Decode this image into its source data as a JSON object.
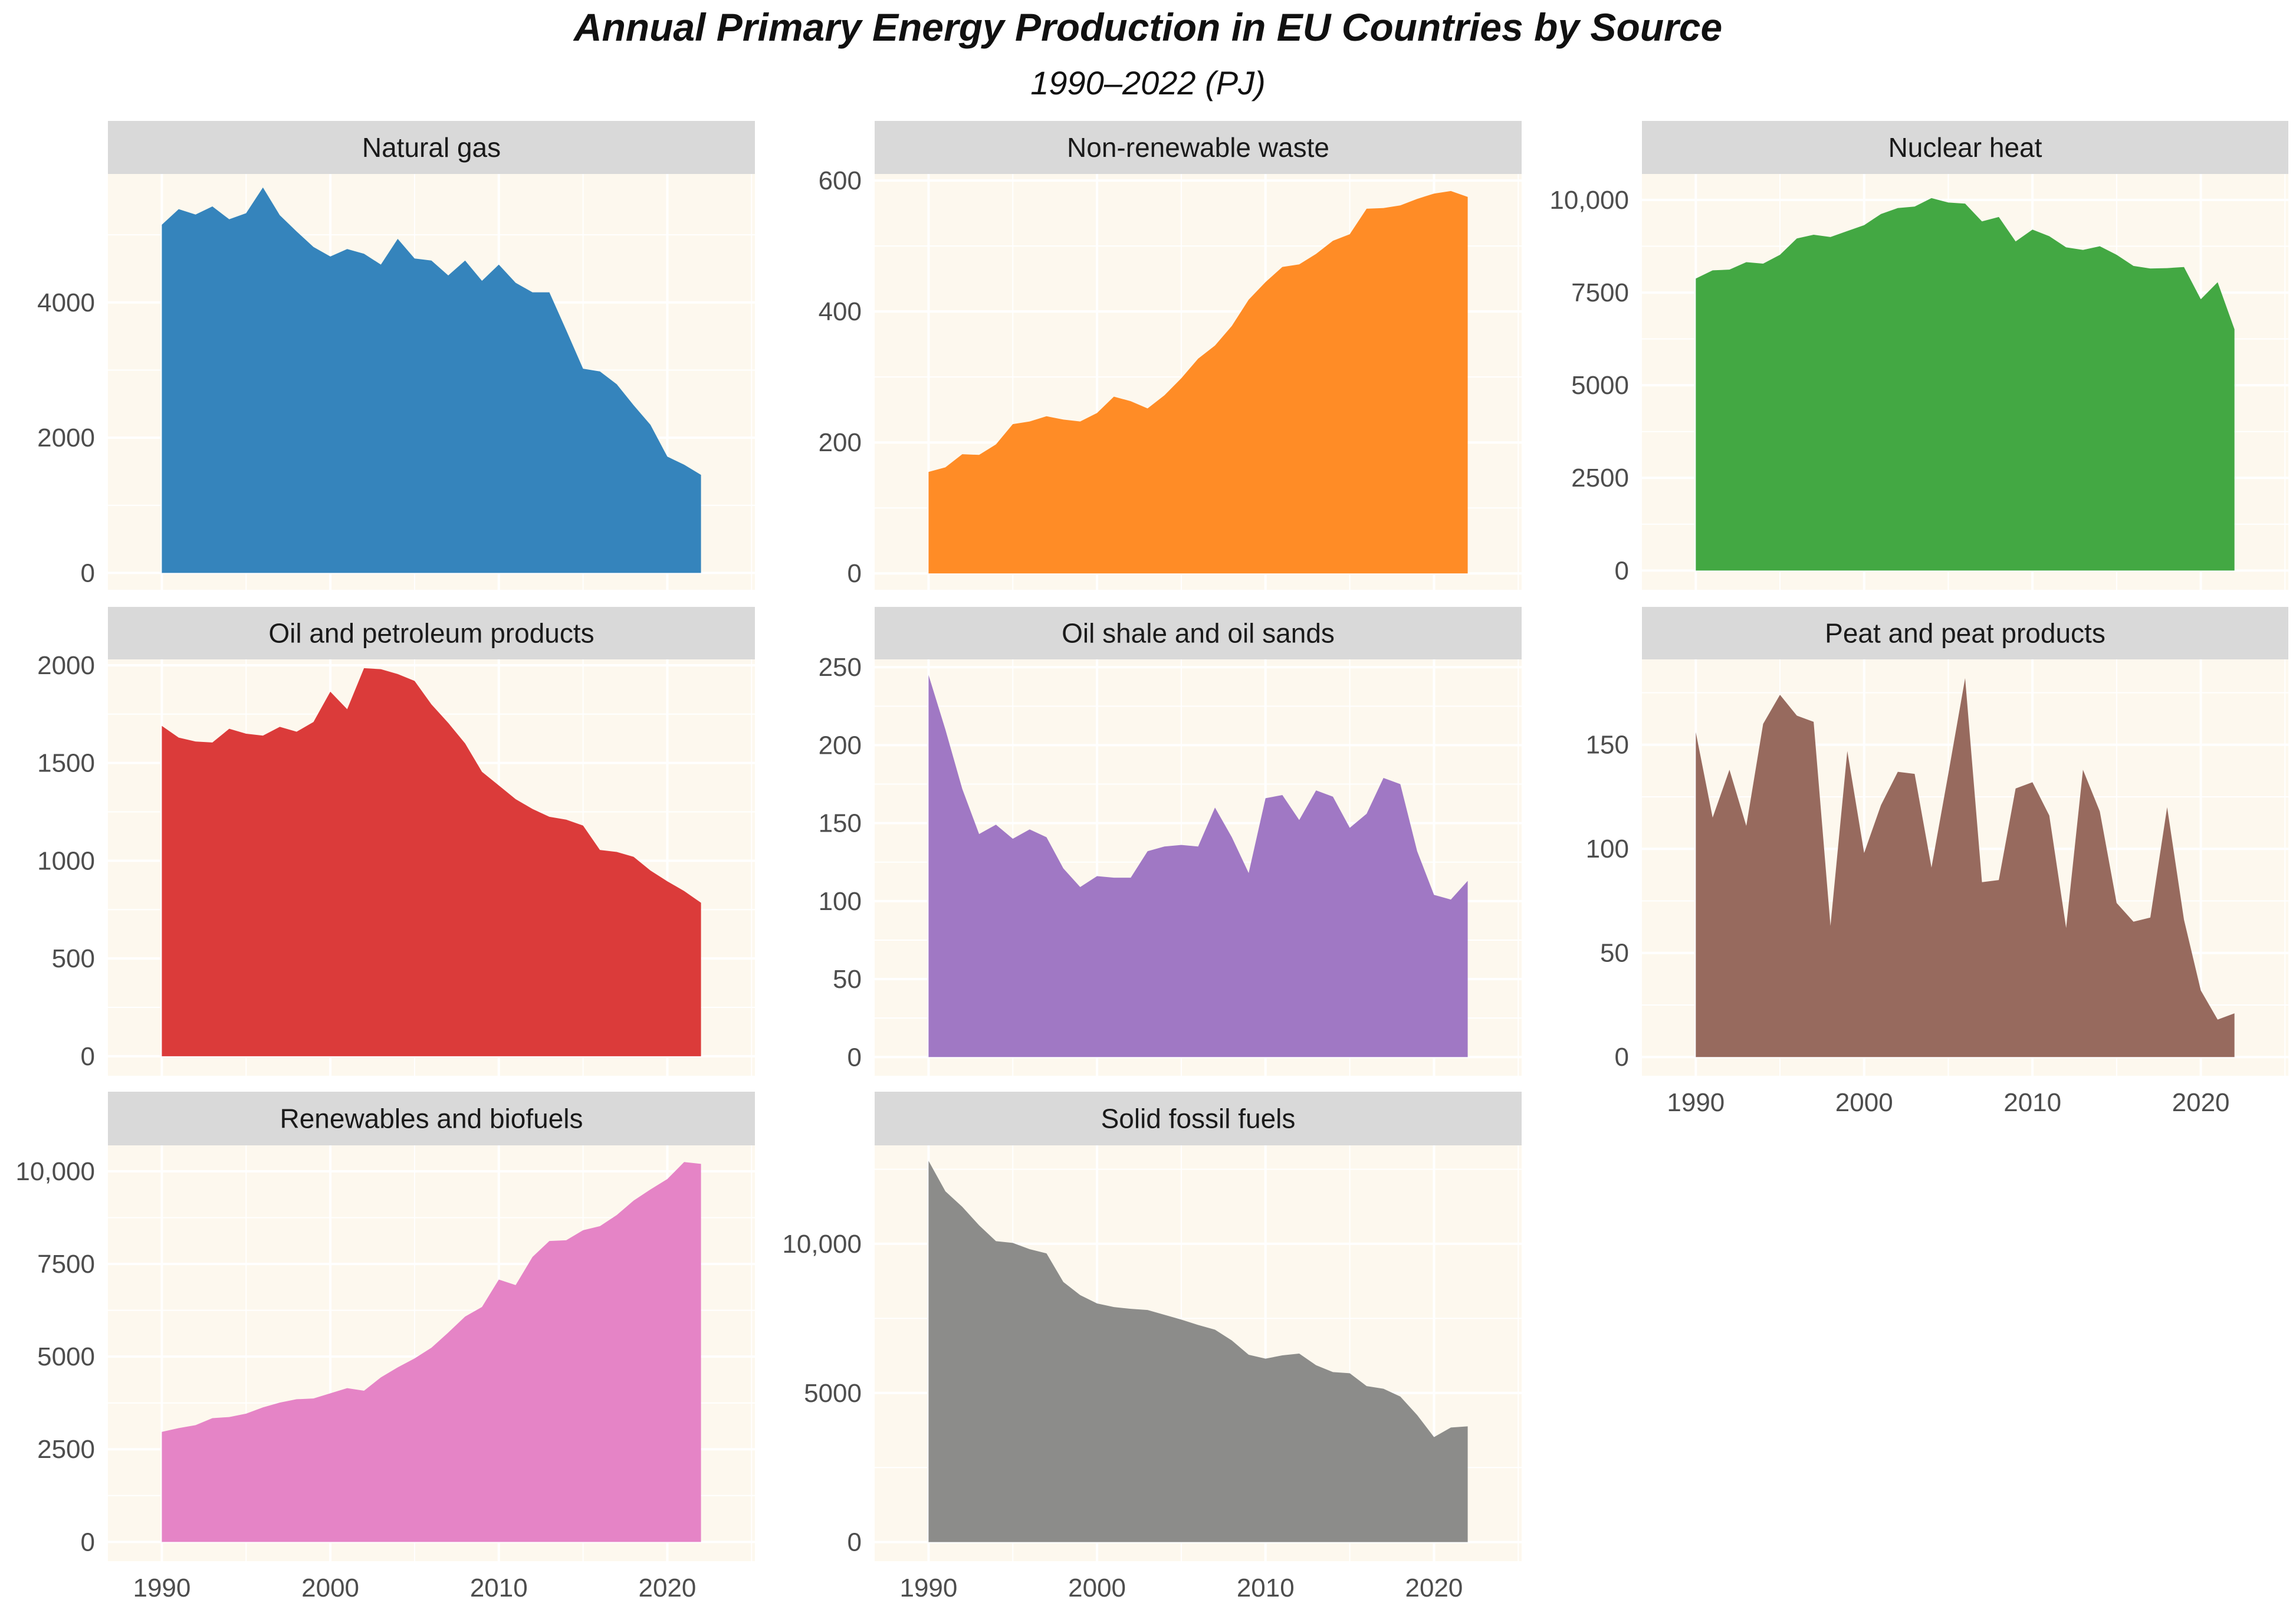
{
  "title": "Annual Primary Energy Production in EU Countries by Source",
  "subtitle": "1990–2022 (PJ)",
  "chart_data": [
    {
      "type": "area",
      "title": "Natural gas",
      "color": "#3584BC",
      "x": [
        1990,
        1991,
        1992,
        1993,
        1994,
        1995,
        1996,
        1997,
        1998,
        1999,
        2000,
        2001,
        2002,
        2003,
        2004,
        2005,
        2006,
        2007,
        2008,
        2009,
        2010,
        2011,
        2012,
        2013,
        2014,
        2015,
        2016,
        2017,
        2018,
        2019,
        2020,
        2021,
        2022
      ],
      "values": [
        5150,
        5380,
        5300,
        5420,
        5230,
        5320,
        5700,
        5290,
        5050,
        4820,
        4680,
        4790,
        4720,
        4560,
        4940,
        4650,
        4620,
        4400,
        4620,
        4320,
        4560,
        4290,
        4150,
        4150,
        3590,
        3020,
        2980,
        2790,
        2480,
        2190,
        1720,
        1600,
        1450
      ],
      "ylim": [
        -250,
        5900
      ],
      "yticks": [
        0,
        2000,
        4000
      ],
      "ytick_labels": [
        "0",
        "2000",
        "4000"
      ],
      "xticks": [
        1990,
        2000,
        2010,
        2020
      ],
      "xtick_labels": []
    },
    {
      "type": "area",
      "title": "Non-renewable waste",
      "color": "#FF8C26",
      "x": [
        1990,
        1991,
        1992,
        1993,
        1994,
        1995,
        1996,
        1997,
        1998,
        1999,
        2000,
        2001,
        2002,
        2003,
        2004,
        2005,
        2006,
        2007,
        2008,
        2009,
        2010,
        2011,
        2012,
        2013,
        2014,
        2015,
        2016,
        2017,
        2018,
        2019,
        2020,
        2021,
        2022
      ],
      "values": [
        155,
        162,
        182,
        181,
        197,
        228,
        232,
        240,
        235,
        232,
        245,
        270,
        263,
        252,
        272,
        298,
        328,
        348,
        378,
        418,
        445,
        468,
        472,
        488,
        508,
        518,
        557,
        558,
        562,
        572,
        580,
        584,
        575
      ],
      "ylim": [
        -25,
        610
      ],
      "yticks": [
        0,
        200,
        400,
        600
      ],
      "ytick_labels": [
        "0",
        "200",
        "400",
        "600"
      ],
      "xticks": [
        1990,
        2000,
        2010,
        2020
      ],
      "xtick_labels": []
    },
    {
      "type": "area",
      "title": "Nuclear heat",
      "color": "#43A843",
      "x": [
        1990,
        1991,
        1992,
        1993,
        1994,
        1995,
        1996,
        1997,
        1998,
        1999,
        2000,
        2001,
        2002,
        2003,
        2004,
        2005,
        2006,
        2007,
        2008,
        2009,
        2010,
        2011,
        2012,
        2013,
        2014,
        2015,
        2016,
        2017,
        2018,
        2019,
        2020,
        2021,
        2022
      ],
      "values": [
        7880,
        8100,
        8120,
        8320,
        8280,
        8520,
        8960,
        9060,
        9000,
        9160,
        9320,
        9620,
        9780,
        9820,
        10050,
        9930,
        9900,
        9420,
        9540,
        8880,
        9200,
        9020,
        8720,
        8650,
        8750,
        8520,
        8220,
        8150,
        8160,
        8190,
        7320,
        7780,
        6510
      ],
      "ylim": [
        -520,
        10700
      ],
      "yticks": [
        0,
        2500,
        5000,
        7500,
        10000
      ],
      "ytick_labels": [
        "0",
        "2500",
        "5000",
        "7500",
        "10,000"
      ],
      "xticks": [
        1990,
        2000,
        2010,
        2020
      ],
      "xtick_labels": []
    },
    {
      "type": "area",
      "title": "Oil and petroleum products",
      "color": "#DB3B3A",
      "x": [
        1990,
        1991,
        1992,
        1993,
        1994,
        1995,
        1996,
        1997,
        1998,
        1999,
        2000,
        2001,
        2002,
        2003,
        2004,
        2005,
        2006,
        2007,
        2008,
        2009,
        2010,
        2011,
        2012,
        2013,
        2014,
        2015,
        2016,
        2017,
        2018,
        2019,
        2020,
        2021,
        2022
      ],
      "values": [
        1690,
        1630,
        1610,
        1605,
        1675,
        1650,
        1640,
        1685,
        1660,
        1710,
        1865,
        1775,
        1985,
        1980,
        1955,
        1920,
        1800,
        1705,
        1600,
        1455,
        1385,
        1315,
        1265,
        1225,
        1210,
        1180,
        1055,
        1045,
        1020,
        950,
        895,
        845,
        785
      ],
      "ylim": [
        -100,
        2030
      ],
      "yticks": [
        0,
        500,
        1000,
        1500,
        2000
      ],
      "ytick_labels": [
        "0",
        "500",
        "1000",
        "1500",
        "2000"
      ],
      "xticks": [
        1990,
        2000,
        2010,
        2020
      ],
      "xtick_labels": []
    },
    {
      "type": "area",
      "title": "Oil shale and oil sands",
      "color": "#A078C4",
      "x": [
        1990,
        1991,
        1992,
        1993,
        1994,
        1995,
        1996,
        1997,
        1998,
        1999,
        2000,
        2001,
        2002,
        2003,
        2004,
        2005,
        2006,
        2007,
        2008,
        2009,
        2010,
        2011,
        2012,
        2013,
        2014,
        2015,
        2016,
        2017,
        2018,
        2019,
        2020,
        2021,
        2022
      ],
      "values": [
        245,
        210,
        172,
        143,
        149,
        140,
        146,
        141,
        121,
        109,
        116,
        115,
        115,
        132,
        135,
        136,
        135,
        160,
        141,
        118,
        166,
        168,
        152,
        171,
        167,
        147,
        156,
        179,
        175,
        132,
        104,
        101,
        113
      ],
      "ylim": [
        -12,
        255
      ],
      "yticks": [
        0,
        50,
        100,
        150,
        200,
        250
      ],
      "ytick_labels": [
        "0",
        "50",
        "100",
        "150",
        "200",
        "250"
      ],
      "xticks": [
        1990,
        2000,
        2010,
        2020
      ],
      "xtick_labels": []
    },
    {
      "type": "area",
      "title": "Peat and peat products",
      "color": "#976A5E",
      "x": [
        1990,
        1991,
        1992,
        1993,
        1994,
        1995,
        1996,
        1997,
        1998,
        1999,
        2000,
        2001,
        2002,
        2003,
        2004,
        2005,
        2006,
        2007,
        2008,
        2009,
        2010,
        2011,
        2012,
        2013,
        2014,
        2015,
        2016,
        2017,
        2018,
        2019,
        2020,
        2021,
        2022
      ],
      "values": [
        156,
        115,
        138,
        111,
        160,
        174,
        164,
        161,
        63,
        147,
        98,
        121,
        137,
        136,
        91,
        136,
        182,
        84,
        85,
        129,
        132,
        116,
        62,
        138,
        118,
        74,
        65,
        67,
        120,
        66,
        32,
        18,
        21
      ],
      "ylim": [
        -9,
        191
      ],
      "yticks": [
        0,
        50,
        100,
        150
      ],
      "ytick_labels": [
        "0",
        "50",
        "100",
        "150"
      ],
      "xticks": [
        1990,
        2000,
        2010,
        2020
      ],
      "xtick_labels": [
        "1990",
        "2000",
        "2010",
        "2020"
      ]
    },
    {
      "type": "area",
      "title": "Renewables and biofuels",
      "color": "#E584C6",
      "x": [
        1990,
        1991,
        1992,
        1993,
        1994,
        1995,
        1996,
        1997,
        1998,
        1999,
        2000,
        2001,
        2002,
        2003,
        2004,
        2005,
        2006,
        2007,
        2008,
        2009,
        2010,
        2011,
        2012,
        2013,
        2014,
        2015,
        2016,
        2017,
        2018,
        2019,
        2020,
        2021,
        2022
      ],
      "values": [
        2970,
        3070,
        3150,
        3340,
        3370,
        3460,
        3630,
        3760,
        3850,
        3870,
        4010,
        4150,
        4080,
        4440,
        4710,
        4950,
        5240,
        5650,
        6080,
        6340,
        7080,
        6930,
        7690,
        8120,
        8140,
        8410,
        8520,
        8820,
        9210,
        9510,
        9790,
        10250,
        10200
      ],
      "ylim": [
        -520,
        10700
      ],
      "yticks": [
        0,
        2500,
        5000,
        7500,
        10000
      ],
      "ytick_labels": [
        "0",
        "2500",
        "5000",
        "7500",
        "10,000"
      ],
      "xticks": [
        1990,
        2000,
        2010,
        2020
      ],
      "xtick_labels": [
        "1990",
        "2000",
        "2010",
        "2020"
      ]
    },
    {
      "type": "area",
      "title": "Solid fossil fuels",
      "color": "#8C8C8A",
      "x": [
        1990,
        1991,
        1992,
        1993,
        1994,
        1995,
        1996,
        1997,
        1998,
        1999,
        2000,
        2001,
        2002,
        2003,
        2004,
        2005,
        2006,
        2007,
        2008,
        2009,
        2010,
        2011,
        2012,
        2013,
        2014,
        2015,
        2016,
        2017,
        2018,
        2019,
        2020,
        2021,
        2022
      ],
      "values": [
        12780,
        11760,
        11240,
        10620,
        10090,
        10030,
        9820,
        9680,
        8720,
        8280,
        8000,
        7880,
        7820,
        7780,
        7620,
        7460,
        7280,
        7120,
        6760,
        6280,
        6150,
        6260,
        6320,
        5930,
        5700,
        5660,
        5230,
        5140,
        4880,
        4260,
        3520,
        3840,
        3880
      ],
      "ylim": [
        -640,
        13300
      ],
      "yticks": [
        0,
        5000,
        10000
      ],
      "ytick_labels": [
        "0",
        "5000",
        "10,000"
      ],
      "xticks": [
        1990,
        2000,
        2010,
        2020
      ],
      "xtick_labels": [
        "1990",
        "2000",
        "2010",
        "2020"
      ]
    }
  ]
}
